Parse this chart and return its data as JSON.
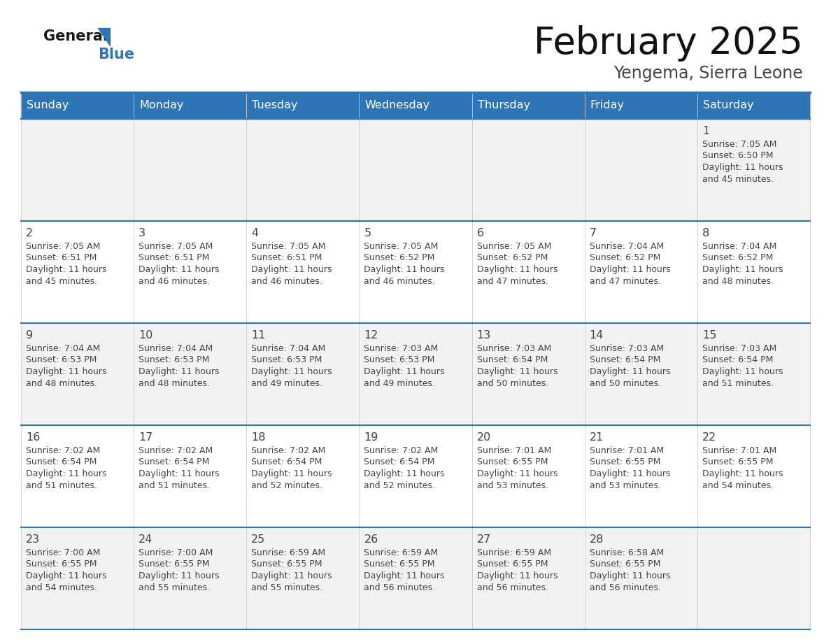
{
  "title": "February 2025",
  "subtitle": "Yengema, Sierra Leone",
  "header_color": "#2E75B6",
  "header_text_color": "#FFFFFF",
  "row_bg_light": "#F2F2F2",
  "row_bg_white": "#FFFFFF",
  "border_color": "#2E75B6",
  "cell_border_color": "#CCCCCC",
  "text_color": "#444444",
  "days_of_week": [
    "Sunday",
    "Monday",
    "Tuesday",
    "Wednesday",
    "Thursday",
    "Friday",
    "Saturday"
  ],
  "weeks": [
    [
      {
        "day": null,
        "sunrise": null,
        "sunset": null,
        "daylight_h": null,
        "daylight_m": null
      },
      {
        "day": null,
        "sunrise": null,
        "sunset": null,
        "daylight_h": null,
        "daylight_m": null
      },
      {
        "day": null,
        "sunrise": null,
        "sunset": null,
        "daylight_h": null,
        "daylight_m": null
      },
      {
        "day": null,
        "sunrise": null,
        "sunset": null,
        "daylight_h": null,
        "daylight_m": null
      },
      {
        "day": null,
        "sunrise": null,
        "sunset": null,
        "daylight_h": null,
        "daylight_m": null
      },
      {
        "day": null,
        "sunrise": null,
        "sunset": null,
        "daylight_h": null,
        "daylight_m": null
      },
      {
        "day": 1,
        "sunrise": "7:05 AM",
        "sunset": "6:50 PM",
        "daylight_h": "11 hours",
        "daylight_m": "and 45 minutes."
      }
    ],
    [
      {
        "day": 2,
        "sunrise": "7:05 AM",
        "sunset": "6:51 PM",
        "daylight_h": "11 hours",
        "daylight_m": "and 45 minutes."
      },
      {
        "day": 3,
        "sunrise": "7:05 AM",
        "sunset": "6:51 PM",
        "daylight_h": "11 hours",
        "daylight_m": "and 46 minutes."
      },
      {
        "day": 4,
        "sunrise": "7:05 AM",
        "sunset": "6:51 PM",
        "daylight_h": "11 hours",
        "daylight_m": "and 46 minutes."
      },
      {
        "day": 5,
        "sunrise": "7:05 AM",
        "sunset": "6:52 PM",
        "daylight_h": "11 hours",
        "daylight_m": "and 46 minutes."
      },
      {
        "day": 6,
        "sunrise": "7:05 AM",
        "sunset": "6:52 PM",
        "daylight_h": "11 hours",
        "daylight_m": "and 47 minutes."
      },
      {
        "day": 7,
        "sunrise": "7:04 AM",
        "sunset": "6:52 PM",
        "daylight_h": "11 hours",
        "daylight_m": "and 47 minutes."
      },
      {
        "day": 8,
        "sunrise": "7:04 AM",
        "sunset": "6:52 PM",
        "daylight_h": "11 hours",
        "daylight_m": "and 48 minutes."
      }
    ],
    [
      {
        "day": 9,
        "sunrise": "7:04 AM",
        "sunset": "6:53 PM",
        "daylight_h": "11 hours",
        "daylight_m": "and 48 minutes."
      },
      {
        "day": 10,
        "sunrise": "7:04 AM",
        "sunset": "6:53 PM",
        "daylight_h": "11 hours",
        "daylight_m": "and 48 minutes."
      },
      {
        "day": 11,
        "sunrise": "7:04 AM",
        "sunset": "6:53 PM",
        "daylight_h": "11 hours",
        "daylight_m": "and 49 minutes."
      },
      {
        "day": 12,
        "sunrise": "7:03 AM",
        "sunset": "6:53 PM",
        "daylight_h": "11 hours",
        "daylight_m": "and 49 minutes."
      },
      {
        "day": 13,
        "sunrise": "7:03 AM",
        "sunset": "6:54 PM",
        "daylight_h": "11 hours",
        "daylight_m": "and 50 minutes."
      },
      {
        "day": 14,
        "sunrise": "7:03 AM",
        "sunset": "6:54 PM",
        "daylight_h": "11 hours",
        "daylight_m": "and 50 minutes."
      },
      {
        "day": 15,
        "sunrise": "7:03 AM",
        "sunset": "6:54 PM",
        "daylight_h": "11 hours",
        "daylight_m": "and 51 minutes."
      }
    ],
    [
      {
        "day": 16,
        "sunrise": "7:02 AM",
        "sunset": "6:54 PM",
        "daylight_h": "11 hours",
        "daylight_m": "and 51 minutes."
      },
      {
        "day": 17,
        "sunrise": "7:02 AM",
        "sunset": "6:54 PM",
        "daylight_h": "11 hours",
        "daylight_m": "and 51 minutes."
      },
      {
        "day": 18,
        "sunrise": "7:02 AM",
        "sunset": "6:54 PM",
        "daylight_h": "11 hours",
        "daylight_m": "and 52 minutes."
      },
      {
        "day": 19,
        "sunrise": "7:02 AM",
        "sunset": "6:54 PM",
        "daylight_h": "11 hours",
        "daylight_m": "and 52 minutes."
      },
      {
        "day": 20,
        "sunrise": "7:01 AM",
        "sunset": "6:55 PM",
        "daylight_h": "11 hours",
        "daylight_m": "and 53 minutes."
      },
      {
        "day": 21,
        "sunrise": "7:01 AM",
        "sunset": "6:55 PM",
        "daylight_h": "11 hours",
        "daylight_m": "and 53 minutes."
      },
      {
        "day": 22,
        "sunrise": "7:01 AM",
        "sunset": "6:55 PM",
        "daylight_h": "11 hours",
        "daylight_m": "and 54 minutes."
      }
    ],
    [
      {
        "day": 23,
        "sunrise": "7:00 AM",
        "sunset": "6:55 PM",
        "daylight_h": "11 hours",
        "daylight_m": "and 54 minutes."
      },
      {
        "day": 24,
        "sunrise": "7:00 AM",
        "sunset": "6:55 PM",
        "daylight_h": "11 hours",
        "daylight_m": "and 55 minutes."
      },
      {
        "day": 25,
        "sunrise": "6:59 AM",
        "sunset": "6:55 PM",
        "daylight_h": "11 hours",
        "daylight_m": "and 55 minutes."
      },
      {
        "day": 26,
        "sunrise": "6:59 AM",
        "sunset": "6:55 PM",
        "daylight_h": "11 hours",
        "daylight_m": "and 56 minutes."
      },
      {
        "day": 27,
        "sunrise": "6:59 AM",
        "sunset": "6:55 PM",
        "daylight_h": "11 hours",
        "daylight_m": "and 56 minutes."
      },
      {
        "day": 28,
        "sunrise": "6:58 AM",
        "sunset": "6:55 PM",
        "daylight_h": "11 hours",
        "daylight_m": "and 56 minutes."
      },
      {
        "day": null,
        "sunrise": null,
        "sunset": null,
        "daylight_h": null,
        "daylight_m": null
      }
    ]
  ],
  "logo_general_color": "#1a1a1a",
  "logo_blue_color": "#2E75B6",
  "logo_triangle_color": "#2E75B6"
}
